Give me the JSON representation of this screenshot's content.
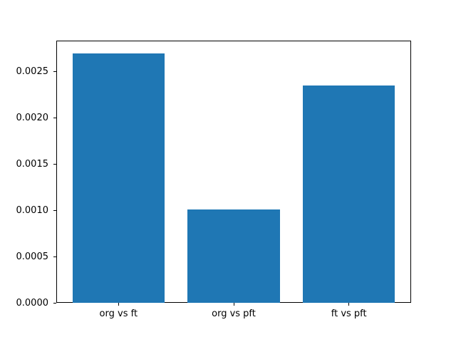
{
  "chart_data": {
    "type": "bar",
    "title": "",
    "xlabel": "",
    "ylabel": "",
    "categories": [
      "org vs ft",
      "org vs pft",
      "ft vs pft"
    ],
    "values": [
      0.0027,
      0.00101,
      0.00235
    ],
    "bar_color": "#1f77b4",
    "axis_color": "#000000",
    "background_color": "#ffffff",
    "grid": false,
    "legend": null,
    "ylim": [
      0.0,
      0.002835
    ],
    "xlim": [
      -0.54,
      2.54
    ],
    "bar_width": 0.8,
    "yticks": [
      0.0,
      0.0005,
      0.001,
      0.0015,
      0.002,
      0.0025
    ],
    "ytick_labels": [
      "0.0000",
      "0.0005",
      "0.0010",
      "0.0015",
      "0.0020",
      "0.0025"
    ]
  }
}
